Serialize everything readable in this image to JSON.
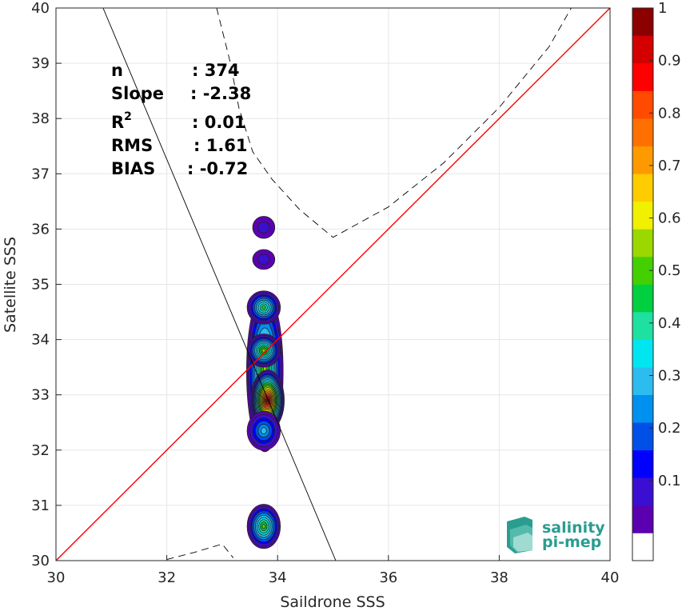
{
  "chart_data": {
    "type": "heatmap",
    "xlabel": "Saildrone SSS",
    "ylabel": "Satellite SSS",
    "xlim": [
      30,
      40
    ],
    "ylim": [
      30,
      40
    ],
    "x_ticks": [
      "30",
      "32",
      "34",
      "36",
      "38",
      "40"
    ],
    "y_ticks": [
      "30",
      "31",
      "32",
      "33",
      "34",
      "35",
      "36",
      "37",
      "38",
      "39",
      "40"
    ],
    "grid": true,
    "stats": [
      {
        "label": "n",
        "value": ": 374"
      },
      {
        "label": "Slope",
        "value": ": -2.38"
      },
      {
        "label": "R",
        "sup": "2",
        "value": ": 0.01"
      },
      {
        "label": "RMS",
        "value": ": 1.61"
      },
      {
        "label": "BIAS",
        "value": ": -0.72"
      }
    ],
    "one_to_one_line": {
      "x": [
        30,
        40
      ],
      "y": [
        30,
        40
      ],
      "color": "#ff0000"
    },
    "regression_line": {
      "x": [
        30.85,
        35.05
      ],
      "y": [
        40,
        30
      ],
      "color": "#000000"
    },
    "dashed_upper": {
      "x": [
        32.9,
        33.0,
        33.15,
        33.3,
        33.55,
        33.9,
        34.4,
        35.0,
        36.0,
        37.0,
        38.0,
        38.9,
        39.3
      ],
      "y": [
        40,
        39.6,
        39.0,
        38.2,
        37.4,
        36.9,
        36.35,
        35.85,
        36.4,
        37.2,
        38.2,
        39.3,
        40
      ]
    },
    "dashed_lower": {
      "x": [
        32.0,
        32.5,
        33.0,
        33.2
      ],
      "y": [
        30.02,
        30.15,
        30.3,
        30.05
      ]
    },
    "density_blobs": [
      {
        "x": 33.75,
        "y": 36.03,
        "rx": 0.2,
        "ry": 0.2,
        "peak": 0.1
      },
      {
        "x": 33.75,
        "y": 35.45,
        "rx": 0.2,
        "ry": 0.18,
        "peak": 0.1
      },
      {
        "x": 33.77,
        "y": 33.42,
        "rx": 0.33,
        "ry": 1.45,
        "peak": 0.58
      },
      {
        "x": 33.82,
        "y": 32.9,
        "rx": 0.3,
        "ry": 0.55,
        "peak": 1.0
      },
      {
        "x": 33.75,
        "y": 33.8,
        "rx": 0.3,
        "ry": 0.3,
        "peak": 0.6
      },
      {
        "x": 33.75,
        "y": 34.58,
        "rx": 0.3,
        "ry": 0.3,
        "peak": 0.45
      },
      {
        "x": 33.75,
        "y": 32.35,
        "rx": 0.3,
        "ry": 0.35,
        "peak": 0.32
      },
      {
        "x": 33.75,
        "y": 30.62,
        "rx": 0.3,
        "ry": 0.4,
        "peak": 0.55
      }
    ],
    "colorbar": {
      "ticks": [
        "0.1",
        "0.2",
        "0.3",
        "0.4",
        "0.5",
        "0.6",
        "0.7",
        "0.8",
        "0.9",
        "1"
      ],
      "colors": [
        "#ffffff",
        "#5a00b0",
        "#3a0fd2",
        "#0000ff",
        "#0050e8",
        "#0090f0",
        "#2dbcf0",
        "#00e6f0",
        "#1ee0a0",
        "#00d040",
        "#44d000",
        "#9ad800",
        "#f0f000",
        "#ffcc00",
        "#ff9900",
        "#ff7000",
        "#ff4a00",
        "#ff0000",
        "#d40000",
        "#8c0000"
      ]
    }
  },
  "logo": {
    "line1": "salinity",
    "line2": "pi-mep"
  }
}
